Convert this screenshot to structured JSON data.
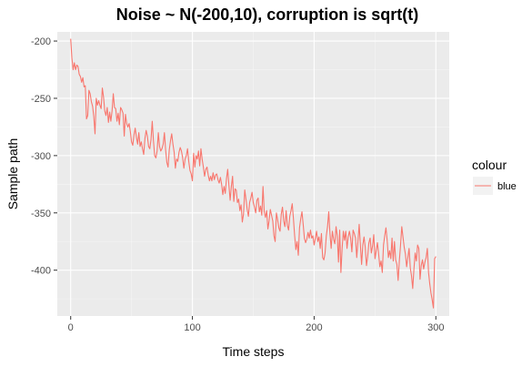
{
  "chart_data": {
    "type": "line",
    "title": "Noise ~ N(-200,10), corruption is sqrt(t)",
    "xlabel": "Time steps",
    "ylabel": "Sample path",
    "xlim": [
      -11,
      311
    ],
    "ylim": [
      -440,
      -192
    ],
    "x_ticks": [
      0,
      100,
      200,
      300
    ],
    "x_tick_labels": [
      "0",
      "100",
      "200",
      "300"
    ],
    "y_ticks": [
      -200,
      -250,
      -300,
      -350,
      -400
    ],
    "y_tick_labels": [
      "-200",
      "-250",
      "-300",
      "-350",
      "-400"
    ],
    "grid": true,
    "legend": {
      "title": "colour",
      "position": "right",
      "entries": [
        {
          "label": "blue",
          "color": "#F8766D"
        }
      ]
    },
    "series": [
      {
        "name": "blue",
        "color": "#F8766D",
        "x_start": 0,
        "x_step": 1,
        "values": [
          -198,
          -215,
          -225,
          -219,
          -225,
          -221,
          -222,
          -229,
          -231,
          -236,
          -232,
          -240,
          -239,
          -268,
          -265,
          -243,
          -246,
          -253,
          -257,
          -266,
          -281,
          -250,
          -256,
          -252,
          -256,
          -259,
          -241,
          -249,
          -261,
          -265,
          -258,
          -271,
          -262,
          -270,
          -261,
          -246,
          -258,
          -259,
          -270,
          -263,
          -273,
          -258,
          -260,
          -263,
          -283,
          -264,
          -272,
          -275,
          -272,
          -279,
          -288,
          -291,
          -282,
          -276,
          -284,
          -290,
          -280,
          -292,
          -288,
          -294,
          -299,
          -285,
          -278,
          -283,
          -292,
          -294,
          -286,
          -270,
          -287,
          -300,
          -302,
          -296,
          -280,
          -292,
          -296,
          -294,
          -290,
          -280,
          -295,
          -306,
          -310,
          -295,
          -287,
          -281,
          -290,
          -297,
          -311,
          -303,
          -305,
          -297,
          -293,
          -296,
          -302,
          -311,
          -303,
          -300,
          -294,
          -305,
          -313,
          -316,
          -322,
          -298,
          -310,
          -300,
          -303,
          -296,
          -309,
          -294,
          -303,
          -310,
          -318,
          -312,
          -310,
          -317,
          -322,
          -318,
          -322,
          -315,
          -321,
          -317,
          -316,
          -321,
          -324,
          -319,
          -325,
          -334,
          -327,
          -333,
          -320,
          -312,
          -326,
          -339,
          -327,
          -318,
          -340,
          -329,
          -330,
          -341,
          -338,
          -348,
          -343,
          -358,
          -351,
          -330,
          -338,
          -347,
          -353,
          -341,
          -337,
          -332,
          -341,
          -345,
          -350,
          -339,
          -337,
          -349,
          -344,
          -352,
          -327,
          -349,
          -354,
          -348,
          -364,
          -357,
          -347,
          -352,
          -357,
          -370,
          -375,
          -350,
          -356,
          -363,
          -366,
          -351,
          -345,
          -357,
          -362,
          -348,
          -361,
          -365,
          -353,
          -348,
          -342,
          -355,
          -370,
          -382,
          -375,
          -387,
          -363,
          -355,
          -349,
          -360,
          -372,
          -376,
          -373,
          -367,
          -372,
          -365,
          -372,
          -370,
          -378,
          -372,
          -366,
          -375,
          -371,
          -381,
          -368,
          -389,
          -391,
          -385,
          -370,
          -362,
          -349,
          -368,
          -381,
          -366,
          -373,
          -377,
          -362,
          -370,
          -393,
          -365,
          -402,
          -381,
          -366,
          -374,
          -366,
          -381,
          -371,
          -366,
          -372,
          -384,
          -365,
          -368,
          -372,
          -389,
          -375,
          -360,
          -378,
          -395,
          -378,
          -371,
          -380,
          -396,
          -388,
          -376,
          -372,
          -385,
          -379,
          -369,
          -390,
          -383,
          -376,
          -386,
          -397,
          -392,
          -402,
          -378,
          -370,
          -363,
          -374,
          -389,
          -383,
          -390,
          -372,
          -392,
          -375,
          -391,
          -395,
          -409,
          -392,
          -378,
          -362,
          -371,
          -380,
          -386,
          -397,
          -389,
          -381,
          -398,
          -405,
          -416,
          -399,
          -385,
          -392,
          -378,
          -381,
          -408,
          -396,
          -391,
          -399,
          -393,
          -389,
          -381,
          -402,
          -412,
          -420,
          -426,
          -433,
          -390,
          -388
        ]
      }
    ]
  }
}
